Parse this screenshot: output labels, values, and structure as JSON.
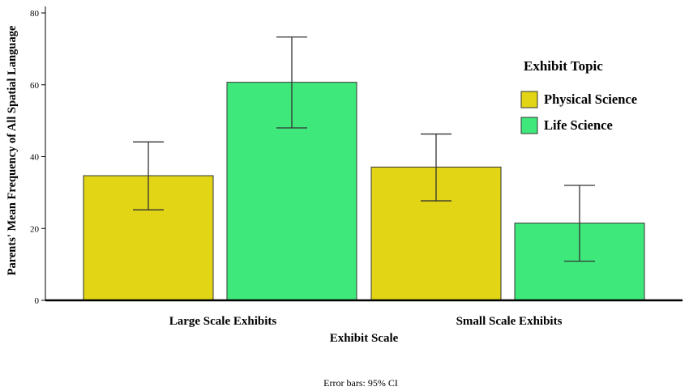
{
  "chart_data": {
    "type": "bar",
    "title": "",
    "xlabel": "Exhibit Scale",
    "ylabel": "Parents' Mean Frequency of All Spatial Language",
    "ylim": [
      0,
      80
    ],
    "yticks": [
      0,
      20,
      40,
      60,
      80
    ],
    "grid": false,
    "categories": [
      "Large Scale Exhibits",
      "Small Scale Exhibits"
    ],
    "series": [
      {
        "name": "Physical Science",
        "color": "#e1d515",
        "values": [
          34.7,
          37.1
        ],
        "ci_low": [
          25.2,
          27.7
        ],
        "ci_high": [
          44.1,
          46.3
        ]
      },
      {
        "name": "Life Science",
        "color": "#3fe87b",
        "values": [
          60.7,
          21.5
        ],
        "ci_low": [
          48.0,
          10.9
        ],
        "ci_high": [
          73.3,
          32.0
        ]
      }
    ],
    "legend": {
      "title": "Exhibit Topic",
      "placement": "top-right"
    },
    "footnote": "Error bars: 95% CI"
  }
}
